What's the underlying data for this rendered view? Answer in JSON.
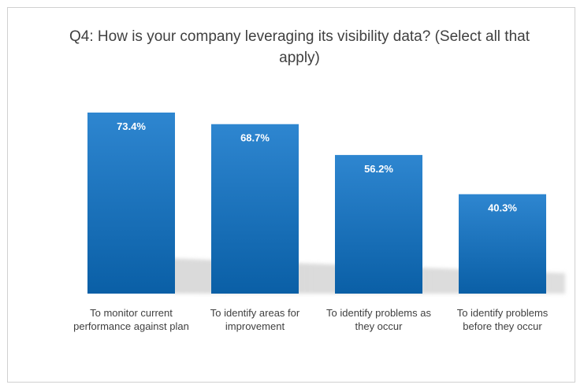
{
  "chart_data": {
    "type": "bar",
    "title": "Q4: How is your company leveraging its visibility data? (Select all that apply)",
    "categories": [
      "To monitor current performance against plan",
      "To identify areas for improvement",
      "To identify problems as they occur",
      "To identify problems before they occur"
    ],
    "values": [
      73.4,
      68.7,
      56.2,
      40.3
    ],
    "value_labels": [
      "73.4%",
      "68.7%",
      "56.2%",
      "40.3%"
    ],
    "ylim": [
      0,
      73.4
    ],
    "xlabel": "",
    "ylabel": "",
    "grid": false,
    "legend": "none"
  },
  "colors": {
    "bar_top": "#2E86D0",
    "bar_bottom": "#0A5FA6",
    "shadow": "#c8c8c8",
    "text": "#404040"
  }
}
